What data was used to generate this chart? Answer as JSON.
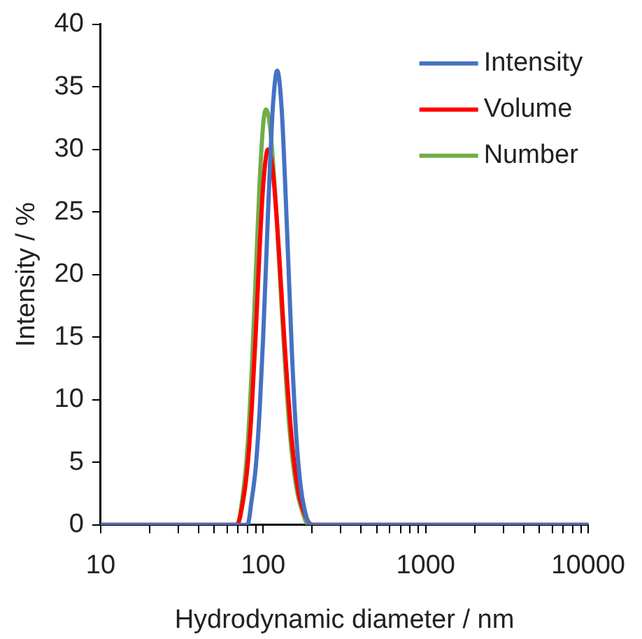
{
  "chart_data": {
    "type": "line",
    "xlabel": "Hydrodynamic diameter / nm",
    "ylabel": "Intensity / %",
    "log": "x",
    "xlim": [
      10,
      10000
    ],
    "ylim": [
      0,
      40
    ],
    "xticks": [
      10,
      {
        "value": 20,
        "label": null
      },
      {
        "value": 30,
        "label": null
      },
      {
        "value": 40,
        "label": null
      },
      {
        "value": 50,
        "label": null
      },
      {
        "value": 60,
        "label": null
      },
      {
        "value": 70,
        "label": null
      },
      {
        "value": 80,
        "label": null
      },
      {
        "value": 90,
        "label": null
      },
      100,
      {
        "value": 200,
        "label": null
      },
      {
        "value": 300,
        "label": null
      },
      {
        "value": 400,
        "label": null
      },
      {
        "value": 500,
        "label": null
      },
      {
        "value": 600,
        "label": null
      },
      {
        "value": 700,
        "label": null
      },
      {
        "value": 800,
        "label": null
      },
      {
        "value": 900,
        "label": null
      },
      1000,
      {
        "value": 2000,
        "label": null
      },
      {
        "value": 3000,
        "label": null
      },
      {
        "value": 4000,
        "label": null
      },
      {
        "value": 5000,
        "label": null
      },
      {
        "value": 6000,
        "label": null
      },
      {
        "value": 7000,
        "label": null
      },
      {
        "value": 8000,
        "label": null
      },
      {
        "value": 9000,
        "label": null
      },
      10000
    ],
    "yticks": [
      0,
      5,
      10,
      15,
      20,
      25,
      30,
      35,
      40
    ],
    "grid": false,
    "legend": "top right",
    "marker": "none",
    "line_style": "solid",
    "series": [
      {
        "name": "Intensity",
        "color": "#4472c4",
        "x": [
          10,
          80,
          85,
          90,
          95,
          100,
          105,
          110,
          115,
          122,
          130,
          140,
          150,
          160,
          170,
          180,
          195,
          10000
        ],
        "values": [
          0,
          0,
          2,
          4.6,
          9,
          15,
          22,
          28.6,
          33.6,
          36.3,
          33.2,
          23.8,
          14,
          7,
          3.1,
          1.2,
          0,
          0
        ]
      },
      {
        "name": "Volume",
        "color": "#ff0000",
        "x": [
          10,
          69,
          75,
          80,
          85,
          90,
          95,
          100,
          107,
          115,
          125,
          135,
          150,
          165,
          180,
          200,
          10000
        ],
        "values": [
          0,
          0,
          1.8,
          4.6,
          9.2,
          15.3,
          21.9,
          27.1,
          30,
          28.1,
          21.9,
          14.8,
          6.8,
          2.6,
          0.9,
          0,
          0
        ]
      },
      {
        "name": "Number",
        "color": "#70ad47",
        "x": [
          10,
          69,
          75,
          80,
          85,
          90,
          95,
          100,
          104,
          110,
          120,
          130,
          145,
          160,
          175,
          190,
          10000
        ],
        "values": [
          0,
          0,
          2.4,
          6.1,
          12.3,
          19.9,
          27.2,
          32,
          33.2,
          31.9,
          25.4,
          17.3,
          7.8,
          3,
          1,
          0,
          0
        ]
      }
    ]
  }
}
